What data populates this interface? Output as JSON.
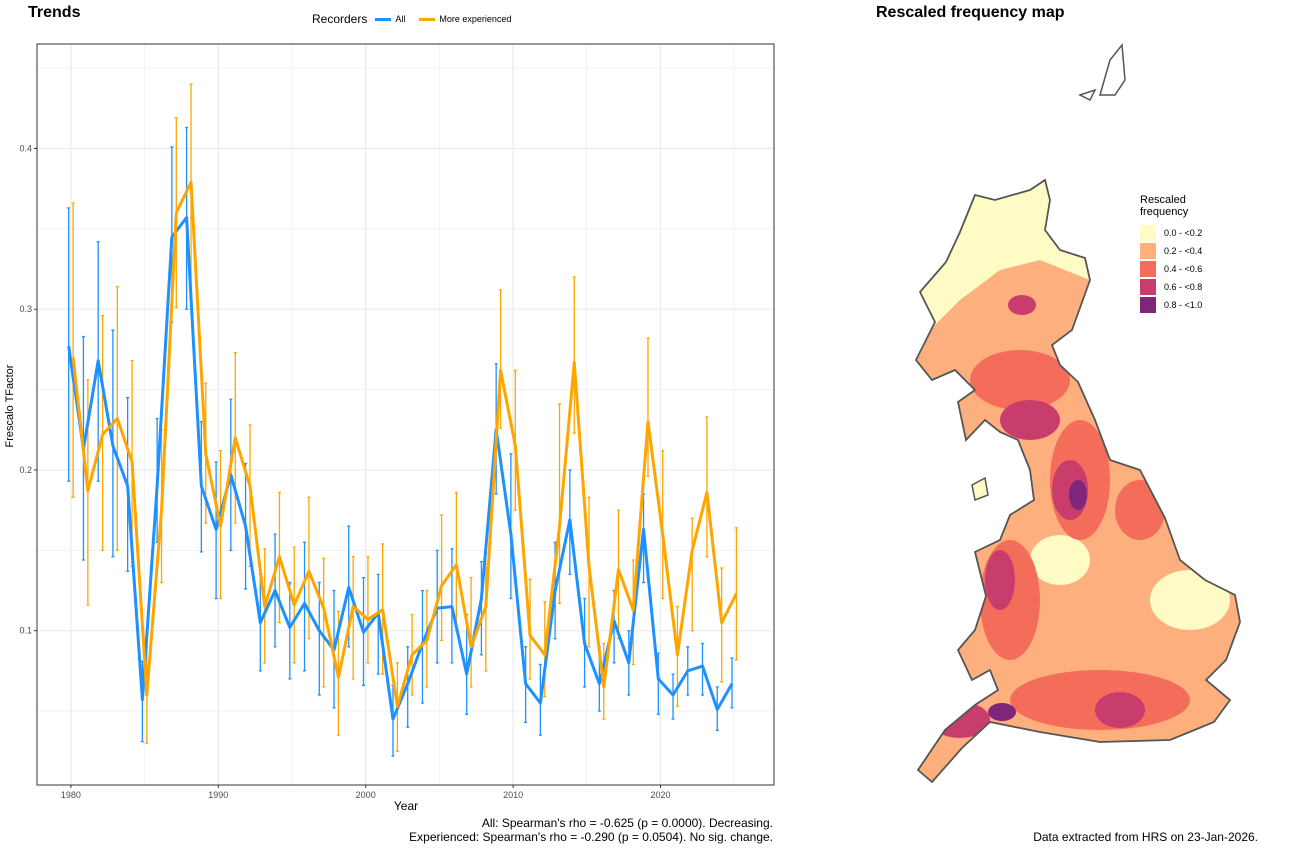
{
  "left_panel": {
    "title": "Trends",
    "legend": {
      "title": "Recorders",
      "items": [
        {
          "label": "All",
          "color": "#1e90ff"
        },
        {
          "label": "More experienced",
          "color": "#ffa500"
        }
      ]
    },
    "footnotes": [
      "All: Spearman's rho = -0.625 (p = 0.0000). Decreasing.",
      "Experienced: Spearman's rho = -0.290 (p = 0.0504). No sig. change."
    ]
  },
  "chart_data": {
    "type": "line",
    "xlabel": "Year",
    "ylabel": "Frescalo TFactor",
    "xlim": [
      1977.7,
      2027.7
    ],
    "ylim": [
      0.004,
      0.465
    ],
    "x_ticks": [
      1980,
      1990,
      2000,
      2010,
      2020
    ],
    "y_ticks": [
      0.1,
      0.2,
      0.3,
      0.4
    ],
    "x_tick_labels": [
      "1980",
      "1990",
      "2000",
      "2010",
      "2020"
    ],
    "y_tick_labels": [
      "0.1",
      "0.2",
      "0.3",
      "0.4"
    ],
    "grid": true,
    "legend_position": "top",
    "x": [
      1980,
      1981,
      1982,
      1983,
      1984,
      1985,
      1986,
      1987,
      1988,
      1989,
      1990,
      1991,
      1992,
      1993,
      1994,
      1995,
      1996,
      1997,
      1998,
      1999,
      2000,
      2001,
      2002,
      2003,
      2004,
      2005,
      2006,
      2007,
      2008,
      2009,
      2010,
      2011,
      2012,
      2013,
      2014,
      2015,
      2016,
      2017,
      2018,
      2019,
      2020,
      2021,
      2022,
      2023,
      2024,
      2025
    ],
    "series": [
      {
        "name": "All",
        "color": "#1e90ff",
        "values": [
          0.277,
          0.213,
          0.268,
          0.215,
          0.19,
          0.057,
          0.19,
          0.345,
          0.357,
          0.19,
          0.163,
          0.197,
          0.165,
          0.105,
          0.125,
          0.102,
          0.117,
          0.1,
          0.088,
          0.127,
          0.099,
          0.111,
          0.045,
          0.067,
          0.092,
          0.114,
          0.115,
          0.073,
          0.12,
          0.225,
          0.16,
          0.067,
          0.055,
          0.125,
          0.169,
          0.092,
          0.067,
          0.106,
          0.08,
          0.163,
          0.07,
          0.06,
          0.075,
          0.078,
          0.051,
          0.067
        ],
        "lower": [
          0.193,
          0.144,
          0.193,
          0.146,
          0.137,
          0.031,
          0.155,
          0.292,
          0.3,
          0.149,
          0.12,
          0.15,
          0.126,
          0.075,
          0.09,
          0.07,
          0.075,
          0.06,
          0.052,
          0.09,
          0.066,
          0.073,
          0.022,
          0.04,
          0.055,
          0.08,
          0.08,
          0.048,
          0.085,
          0.185,
          0.12,
          0.043,
          0.035,
          0.095,
          0.135,
          0.065,
          0.05,
          0.08,
          0.06,
          0.13,
          0.048,
          0.045,
          0.06,
          0.06,
          0.038,
          0.052
        ],
        "upper": [
          0.363,
          0.283,
          0.342,
          0.287,
          0.245,
          0.081,
          0.232,
          0.401,
          0.413,
          0.23,
          0.205,
          0.244,
          0.204,
          0.135,
          0.16,
          0.13,
          0.155,
          0.13,
          0.125,
          0.165,
          0.133,
          0.135,
          0.066,
          0.09,
          0.125,
          0.15,
          0.151,
          0.11,
          0.143,
          0.266,
          0.21,
          0.09,
          0.079,
          0.155,
          0.2,
          0.12,
          0.09,
          0.125,
          0.1,
          0.185,
          0.086,
          0.073,
          0.09,
          0.092,
          0.065,
          0.083
        ]
      },
      {
        "name": "More experienced",
        "color": "#ffa500",
        "values": [
          0.27,
          0.187,
          0.222,
          0.232,
          0.205,
          0.06,
          0.175,
          0.36,
          0.379,
          0.21,
          0.165,
          0.22,
          0.19,
          0.115,
          0.146,
          0.116,
          0.137,
          0.114,
          0.071,
          0.115,
          0.107,
          0.113,
          0.053,
          0.085,
          0.094,
          0.128,
          0.141,
          0.09,
          0.115,
          0.262,
          0.215,
          0.097,
          0.085,
          0.165,
          0.267,
          0.14,
          0.065,
          0.138,
          0.113,
          0.23,
          0.16,
          0.085,
          0.15,
          0.186,
          0.105,
          0.123
        ],
        "lower": [
          0.183,
          0.116,
          0.15,
          0.15,
          0.14,
          0.03,
          0.13,
          0.301,
          0.3,
          0.167,
          0.12,
          0.167,
          0.14,
          0.08,
          0.105,
          0.08,
          0.095,
          0.065,
          0.035,
          0.07,
          0.08,
          0.073,
          0.025,
          0.06,
          0.065,
          0.094,
          0.1,
          0.065,
          0.075,
          0.226,
          0.175,
          0.07,
          0.059,
          0.117,
          0.223,
          0.09,
          0.045,
          0.095,
          0.079,
          0.196,
          0.12,
          0.053,
          0.1,
          0.146,
          0.068,
          0.082
        ],
        "upper": [
          0.366,
          0.256,
          0.296,
          0.314,
          0.268,
          0.09,
          0.225,
          0.419,
          0.44,
          0.254,
          0.212,
          0.273,
          0.228,
          0.151,
          0.186,
          0.152,
          0.183,
          0.145,
          0.112,
          0.146,
          0.146,
          0.154,
          0.08,
          0.11,
          0.125,
          0.172,
          0.186,
          0.133,
          0.148,
          0.312,
          0.262,
          0.132,
          0.118,
          0.241,
          0.32,
          0.183,
          0.092,
          0.175,
          0.144,
          0.282,
          0.212,
          0.115,
          0.17,
          0.233,
          0.139,
          0.164
        ]
      }
    ]
  },
  "right_panel": {
    "title": "Rescaled frequency map",
    "legend": {
      "title_line1": "Rescaled",
      "title_line2": "frequency",
      "items": [
        {
          "label": "0.0 - <0.2",
          "color": "#fefbc4"
        },
        {
          "label": "0.2 - <0.4",
          "color": "#fdb07e"
        },
        {
          "label": "0.4 - <0.6",
          "color": "#f46d5b"
        },
        {
          "label": "0.6 - <0.8",
          "color": "#c93d6c"
        },
        {
          "label": "0.8 - <1.0",
          "color": "#80267a"
        }
      ]
    },
    "footnote": "Data extracted from HRS on 23-Jan-2026."
  }
}
